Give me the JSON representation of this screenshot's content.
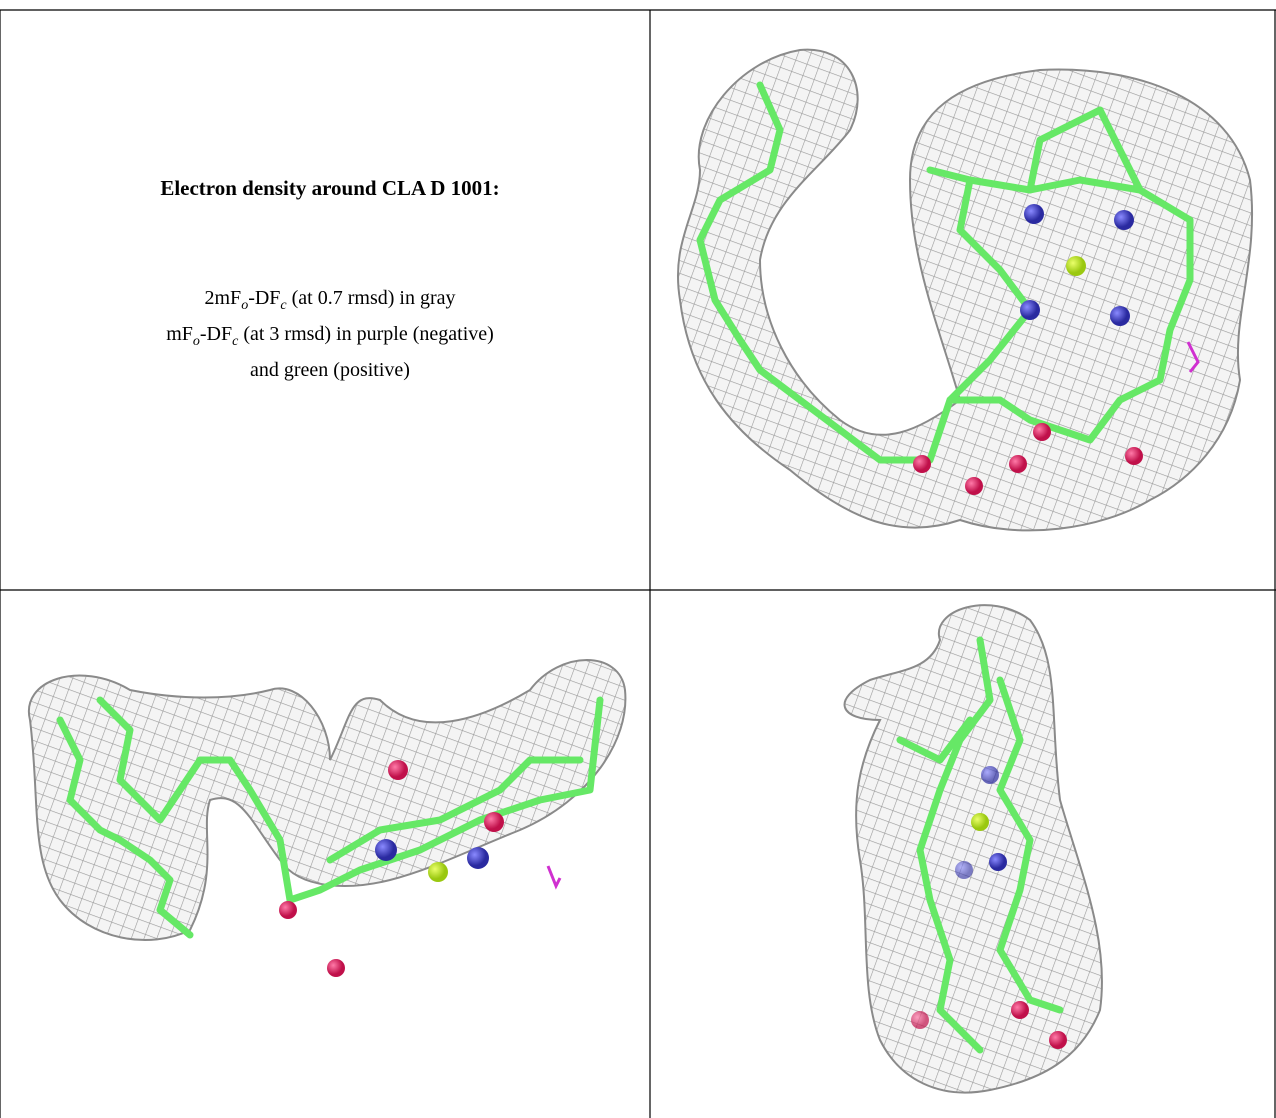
{
  "cells": {
    "title": "Electron density around CLA D 1001:",
    "caption": [
      [
        {
          "text": "2mF"
        },
        {
          "text": "o",
          "sub": true
        },
        {
          "text": "-DF"
        },
        {
          "text": "c",
          "sub": true
        },
        {
          "text": " (at 0.7 rmsd) in gray"
        }
      ],
      [
        {
          "text": "mF"
        },
        {
          "text": "o",
          "sub": true
        },
        {
          "text": "-DF"
        },
        {
          "text": "c",
          "sub": true
        },
        {
          "text": " (at 3 rmsd) in purple (negative)"
        }
      ],
      [
        {
          "text": "and green (positive)"
        }
      ]
    ]
  }
}
